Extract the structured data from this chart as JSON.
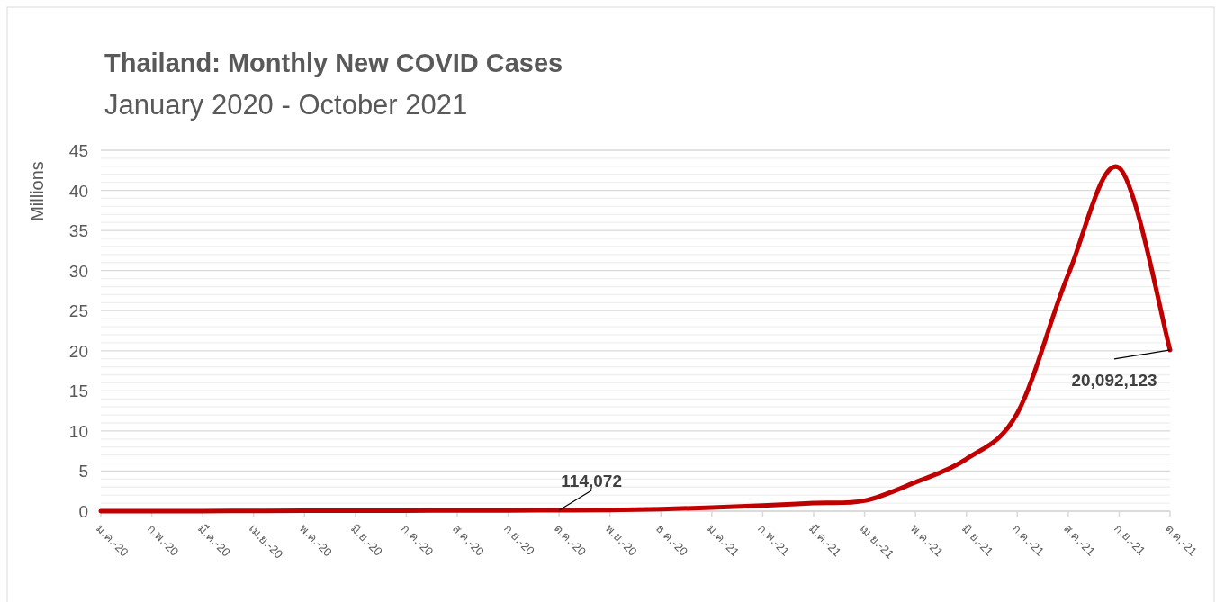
{
  "chart_data": {
    "type": "line",
    "title": "Thailand: Monthly New COVID Cases",
    "subtitle": "January 2020 - October 2021",
    "ylabel": "Millions",
    "categories": [
      "ม.ค.-20",
      "ก.พ.-20",
      "มี.ค.-20",
      "เม.ย.-20",
      "พ.ค.-20",
      "มิ.ย.-20",
      "ก.ค.-20",
      "ส.ค.-20",
      "ก.ย.-20",
      "ต.ค.-20",
      "พ.ย.-20",
      "ธ.ค.-20",
      "ม.ค.-21",
      "ก.พ.-21",
      "มี.ค.-21",
      "เม.ย.-21",
      "พ.ค.-21",
      "มิ.ย.-21",
      "ก.ค.-21",
      "ส.ค.-21",
      "ก.ย.-21",
      "ต.ค.-21"
    ],
    "series": [
      {
        "color": "#c00000",
        "values": [
          0,
          0,
          0.01,
          0.03,
          0.05,
          0.06,
          0.07,
          0.08,
          0.09,
          0.114072,
          0.13,
          0.25,
          0.45,
          0.7,
          1.0,
          1.3,
          3.6,
          6.5,
          12.2,
          29.5,
          42.8,
          20.092123
        ]
      }
    ],
    "ylim": [
      0,
      45
    ],
    "yticks": [
      0,
      {
        "value": 1,
        "label": null
      },
      {
        "value": 2,
        "label": null
      },
      {
        "value": 3,
        "label": null
      },
      {
        "value": 4,
        "label": null
      },
      5,
      {
        "value": 6,
        "label": null
      },
      {
        "value": 7,
        "label": null
      },
      {
        "value": 8,
        "label": null
      },
      {
        "value": 9,
        "label": null
      },
      10,
      {
        "value": 11,
        "label": null
      },
      {
        "value": 12,
        "label": null
      },
      {
        "value": 13,
        "label": null
      },
      {
        "value": 14,
        "label": null
      },
      15,
      {
        "value": 16,
        "label": null
      },
      {
        "value": 17,
        "label": null
      },
      {
        "value": 18,
        "label": null
      },
      {
        "value": 19,
        "label": null
      },
      20,
      {
        "value": 21,
        "label": null
      },
      {
        "value": 22,
        "label": null
      },
      {
        "value": 23,
        "label": null
      },
      {
        "value": 24,
        "label": null
      },
      25,
      {
        "value": 26,
        "label": null
      },
      {
        "value": 27,
        "label": null
      },
      {
        "value": 28,
        "label": null
      },
      {
        "value": 29,
        "label": null
      },
      30,
      {
        "value": 31,
        "label": null
      },
      {
        "value": 32,
        "label": null
      },
      {
        "value": 33,
        "label": null
      },
      {
        "value": 34,
        "label": null
      },
      35,
      {
        "value": 36,
        "label": null
      },
      {
        "value": 37,
        "label": null
      },
      {
        "value": 38,
        "label": null
      },
      {
        "value": 39,
        "label": null
      },
      40,
      {
        "value": 41,
        "label": null
      },
      {
        "value": 42,
        "label": null
      },
      {
        "value": 43,
        "label": null
      },
      {
        "value": 44,
        "label": null
      },
      45
    ],
    "grid": "y",
    "marker": "none",
    "line_style": "solid",
    "annotations": [
      {
        "text": "114,072",
        "x": "ต.ค.-20",
        "y": 0.114072
      },
      {
        "text": "20,092,123",
        "x": "ต.ค.-21",
        "y": 20.092123
      }
    ]
  }
}
